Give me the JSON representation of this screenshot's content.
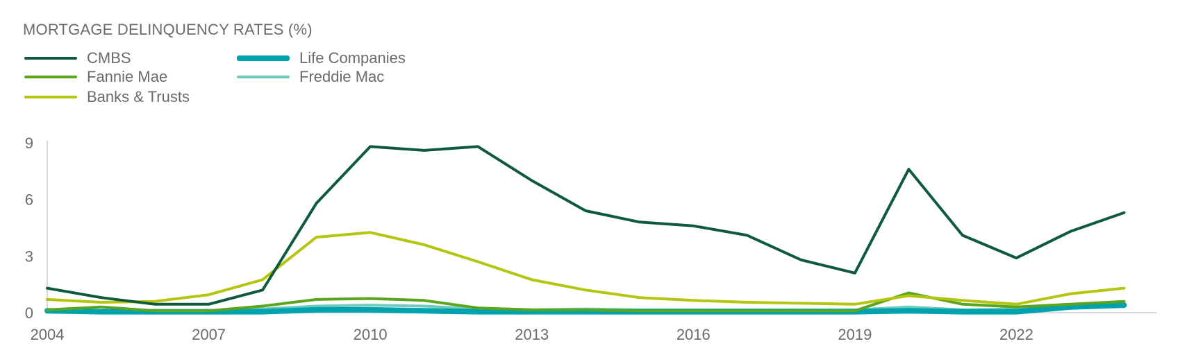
{
  "title": "MORTGAGE DELINQUENCY RATES (%)",
  "chart_data": {
    "type": "line",
    "title": "MORTGAGE DELINQUENCY RATES (%)",
    "xlabel": "",
    "ylabel": "",
    "x": [
      2004,
      2005,
      2006,
      2007,
      2008,
      2009,
      2010,
      2011,
      2012,
      2013,
      2014,
      2015,
      2016,
      2017,
      2018,
      2019,
      2020,
      2021,
      2022,
      2023,
      2024
    ],
    "xlim": [
      2004,
      2024.6
    ],
    "ylim": [
      0,
      9
    ],
    "x_ticks": [
      2004,
      2007,
      2010,
      2013,
      2016,
      2019,
      2022
    ],
    "y_ticks": [
      0,
      3,
      6,
      9
    ],
    "grid": false,
    "legend_position": "top-left",
    "series": [
      {
        "name": "CMBS",
        "color": "#0f5a3c",
        "width": 4,
        "values": [
          1.3,
          0.8,
          0.45,
          0.45,
          1.2,
          5.8,
          8.8,
          8.6,
          8.8,
          7.0,
          5.4,
          4.8,
          4.6,
          4.1,
          2.8,
          2.1,
          7.6,
          4.1,
          2.9,
          4.3,
          5.3
        ]
      },
      {
        "name": "Life Companies",
        "color": "#00a3ad",
        "width": 8,
        "values": [
          0.1,
          0.05,
          0.05,
          0.05,
          0.05,
          0.15,
          0.15,
          0.1,
          0.05,
          0.05,
          0.05,
          0.05,
          0.05,
          0.05,
          0.05,
          0.05,
          0.1,
          0.05,
          0.05,
          0.3,
          0.4
        ]
      },
      {
        "name": "Fannie Mae",
        "color": "#5aa51e",
        "width": 4,
        "values": [
          0.15,
          0.3,
          0.1,
          0.1,
          0.35,
          0.7,
          0.75,
          0.65,
          0.25,
          0.15,
          0.15,
          0.1,
          0.1,
          0.1,
          0.1,
          0.1,
          1.05,
          0.45,
          0.3,
          0.45,
          0.6
        ]
      },
      {
        "name": "Freddie Mac",
        "color": "#6ccbbd",
        "width": 4,
        "values": [
          0.15,
          0.1,
          0.1,
          0.1,
          0.2,
          0.35,
          0.4,
          0.35,
          0.2,
          0.15,
          0.2,
          0.15,
          0.15,
          0.15,
          0.15,
          0.15,
          0.3,
          0.15,
          0.2,
          0.35,
          0.45
        ]
      },
      {
        "name": "Banks & Trusts",
        "color": "#b5c40f",
        "width": 4,
        "values": [
          0.7,
          0.55,
          0.6,
          0.95,
          1.75,
          4.0,
          4.25,
          3.6,
          2.7,
          1.75,
          1.2,
          0.8,
          0.65,
          0.55,
          0.5,
          0.45,
          0.9,
          0.65,
          0.45,
          1.0,
          1.3
        ]
      }
    ]
  }
}
